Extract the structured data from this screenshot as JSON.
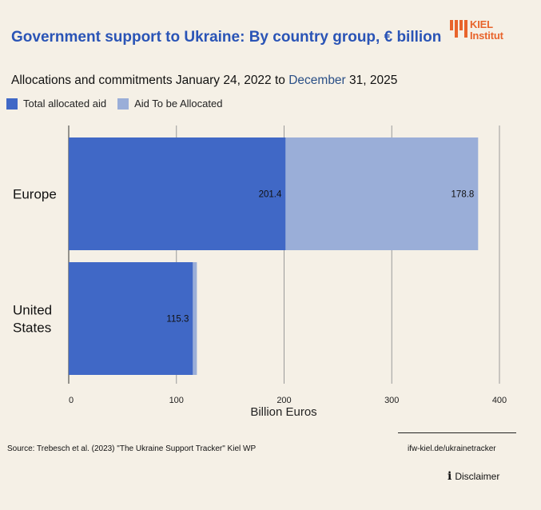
{
  "header": {
    "title": "Government support to Ukraine: By country group, € billion",
    "subtitle_prefix": "Allocations and commitments January 24, 2022 to ",
    "subtitle_highlight": "December",
    "subtitle_suffix": " 31, 2025",
    "logo_line1": "KIEL",
    "logo_line2": "Institut"
  },
  "colors": {
    "allocated": "#4068c6",
    "to_be_allocated": "#9aaed8",
    "title": "#2a54b6",
    "logo": "#e8642c",
    "gridline": "#9a9a9a"
  },
  "chart_data": {
    "type": "bar",
    "orientation": "horizontal",
    "stacked": true,
    "title": "Government support to Ukraine: By country group, € billion",
    "categories": [
      "Europe",
      "United States"
    ],
    "series": [
      {
        "name": "Total allocated aid",
        "values": [
          201.4,
          115.3
        ],
        "labels": [
          "201.4",
          "115.3"
        ]
      },
      {
        "name": "Aid To be Allocated",
        "values": [
          178.8,
          3.7
        ],
        "labels": [
          "178.8",
          ""
        ]
      }
    ],
    "xlabel": "Billion Euros",
    "ylabel": "",
    "xlim": [
      0,
      400
    ],
    "xticks": [
      0,
      100,
      200,
      300,
      400
    ],
    "xtick_labels": [
      "0",
      "100",
      "200",
      "300",
      "400"
    ],
    "grid": true,
    "legend": "top-left"
  },
  "footer": {
    "source": "Source: Trebesch et al. (2023) \"The Ukraine Support Tracker\" Kiel WP",
    "tracker_link": "ifw-kiel.de/ukrainetracker",
    "disclaimer": "Disclaimer",
    "disclaimer_icon": "info-icon"
  }
}
